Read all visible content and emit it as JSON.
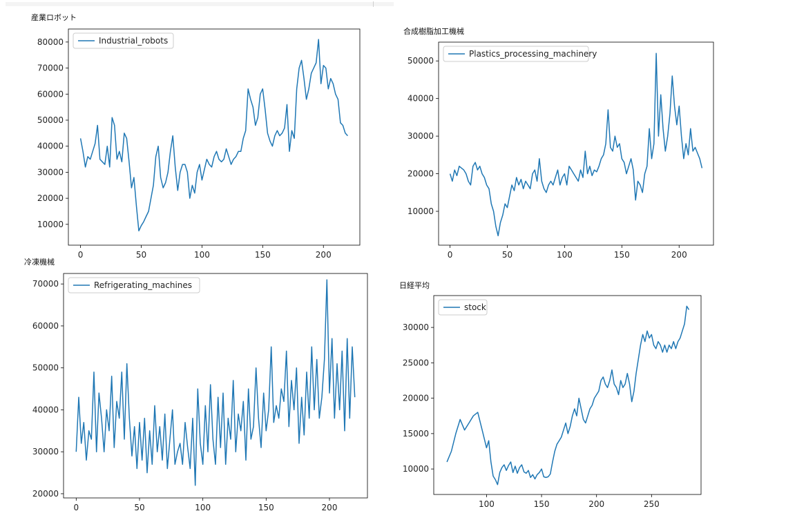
{
  "chart_data": [
    {
      "type": "line",
      "title": "産業ロボット",
      "xlabel": "",
      "ylabel": "",
      "xlim": [
        -10,
        230
      ],
      "ylim": [
        2000,
        85000
      ],
      "xticks": [
        0,
        50,
        100,
        150,
        200
      ],
      "yticks": [
        10000,
        20000,
        30000,
        40000,
        50000,
        60000,
        70000,
        80000
      ],
      "legend": "upper left",
      "series": [
        {
          "name": "Industrial_robots",
          "color": "#1f77b4",
          "x": [
            0,
            2,
            4,
            6,
            8,
            10,
            12,
            14,
            16,
            18,
            20,
            22,
            24,
            26,
            28,
            30,
            32,
            34,
            36,
            38,
            40,
            42,
            44,
            46,
            48,
            50,
            52,
            54,
            56,
            58,
            60,
            62,
            64,
            66,
            68,
            70,
            72,
            74,
            76,
            78,
            80,
            82,
            84,
            86,
            88,
            90,
            92,
            94,
            96,
            98,
            100,
            102,
            104,
            106,
            108,
            110,
            112,
            114,
            116,
            118,
            120,
            122,
            124,
            126,
            128,
            130,
            132,
            134,
            136,
            138,
            140,
            142,
            144,
            146,
            148,
            150,
            152,
            154,
            156,
            158,
            160,
            162,
            164,
            166,
            168,
            170,
            172,
            174,
            176,
            178,
            180,
            182,
            184,
            186,
            188,
            190,
            192,
            194,
            196,
            198,
            200,
            202,
            204,
            206,
            208,
            210,
            212,
            214,
            216,
            218,
            220
          ],
          "values": [
            43000,
            38000,
            32000,
            36000,
            35000,
            38000,
            41000,
            48000,
            35000,
            34000,
            33000,
            40000,
            32000,
            51000,
            48000,
            35000,
            38000,
            34000,
            45000,
            43000,
            34000,
            24000,
            28000,
            17000,
            7500,
            9500,
            11000,
            13000,
            15000,
            20000,
            25000,
            36000,
            40000,
            28000,
            24000,
            26000,
            30000,
            38000,
            44000,
            32000,
            23000,
            30000,
            33000,
            33000,
            30000,
            20000,
            25000,
            22000,
            30000,
            33000,
            27000,
            31000,
            35000,
            33000,
            32000,
            36000,
            38000,
            35000,
            34000,
            35000,
            39000,
            36000,
            33000,
            35000,
            36000,
            38000,
            38000,
            43000,
            46000,
            62000,
            58000,
            55000,
            48000,
            51000,
            60000,
            62000,
            54000,
            45000,
            42000,
            40000,
            44000,
            46000,
            44000,
            45000,
            47000,
            56000,
            38000,
            46000,
            43000,
            62000,
            70000,
            73000,
            66000,
            58000,
            62000,
            68000,
            70000,
            72000,
            81000,
            64000,
            71000,
            70000,
            62000,
            66000,
            64000,
            60000,
            58000,
            49000,
            48000,
            45000,
            44000
          ]
        }
      ]
    },
    {
      "type": "line",
      "title": "合成樹脂加工機械",
      "xlabel": "",
      "ylabel": "",
      "xlim": [
        -10,
        230
      ],
      "ylim": [
        1000,
        55000
      ],
      "xticks": [
        0,
        50,
        100,
        150,
        200
      ],
      "yticks": [
        10000,
        20000,
        30000,
        40000,
        50000
      ],
      "legend": "upper left",
      "series": [
        {
          "name": "Plastics_processing_machinery",
          "color": "#1f77b4",
          "x": [
            0,
            2,
            4,
            6,
            8,
            10,
            12,
            14,
            16,
            18,
            20,
            22,
            24,
            26,
            28,
            30,
            32,
            34,
            36,
            38,
            40,
            42,
            44,
            46,
            48,
            50,
            52,
            54,
            56,
            58,
            60,
            62,
            64,
            66,
            68,
            70,
            72,
            74,
            76,
            78,
            80,
            82,
            84,
            86,
            88,
            90,
            92,
            94,
            96,
            98,
            100,
            102,
            104,
            106,
            108,
            110,
            112,
            114,
            116,
            118,
            120,
            122,
            124,
            126,
            128,
            130,
            132,
            134,
            136,
            138,
            140,
            142,
            144,
            146,
            148,
            150,
            152,
            154,
            156,
            158,
            160,
            162,
            164,
            166,
            168,
            170,
            172,
            174,
            176,
            178,
            180,
            182,
            184,
            186,
            188,
            190,
            192,
            194,
            196,
            198,
            200,
            202,
            204,
            206,
            208,
            210,
            212,
            214,
            216,
            218,
            220
          ],
          "values": [
            20000,
            18000,
            21000,
            19500,
            22000,
            21500,
            21000,
            20000,
            18000,
            17000,
            22000,
            23000,
            21000,
            22000,
            20000,
            19000,
            17000,
            16000,
            12000,
            10000,
            6000,
            3500,
            7000,
            9000,
            12000,
            11000,
            14000,
            17000,
            15500,
            19000,
            17000,
            18500,
            16000,
            18000,
            17000,
            16000,
            20000,
            21000,
            18000,
            24000,
            18000,
            16000,
            15000,
            17000,
            18000,
            17000,
            19000,
            21000,
            17000,
            19000,
            20000,
            17000,
            22000,
            21000,
            20000,
            19000,
            18000,
            21000,
            19000,
            26000,
            20000,
            22000,
            19500,
            21000,
            20500,
            22000,
            24000,
            25000,
            28000,
            37000,
            27000,
            26000,
            30000,
            27000,
            28000,
            24000,
            23000,
            20000,
            22000,
            24000,
            21000,
            13000,
            18000,
            17000,
            15000,
            20000,
            22000,
            32000,
            24000,
            28000,
            52000,
            30000,
            41000,
            32000,
            26000,
            30000,
            36000,
            46000,
            38000,
            33000,
            38000,
            30000,
            24000,
            28000,
            25000,
            32000,
            26000,
            27000,
            25500,
            24000,
            21500
          ]
        }
      ]
    },
    {
      "type": "line",
      "title": "冷凍機械",
      "xlabel": "",
      "ylabel": "",
      "xlim": [
        -10,
        230
      ],
      "ylim": [
        19000,
        72500
      ],
      "xticks": [
        0,
        50,
        100,
        150,
        200
      ],
      "yticks": [
        20000,
        30000,
        40000,
        50000,
        60000,
        70000
      ],
      "legend": "upper left",
      "series": [
        {
          "name": "Refrigerating_machines",
          "color": "#1f77b4",
          "x": [
            0,
            2,
            4,
            6,
            8,
            10,
            12,
            14,
            16,
            18,
            20,
            22,
            24,
            26,
            28,
            30,
            32,
            34,
            36,
            38,
            40,
            42,
            44,
            46,
            48,
            50,
            52,
            54,
            56,
            58,
            60,
            62,
            64,
            66,
            68,
            70,
            72,
            74,
            76,
            78,
            80,
            82,
            84,
            86,
            88,
            90,
            92,
            94,
            96,
            98,
            100,
            102,
            104,
            106,
            108,
            110,
            112,
            114,
            116,
            118,
            120,
            122,
            124,
            126,
            128,
            130,
            132,
            134,
            136,
            138,
            140,
            142,
            144,
            146,
            148,
            150,
            152,
            154,
            156,
            158,
            160,
            162,
            164,
            166,
            168,
            170,
            172,
            174,
            176,
            178,
            180,
            182,
            184,
            186,
            188,
            190,
            192,
            194,
            196,
            198,
            200,
            202,
            204,
            206,
            208,
            210,
            212,
            214,
            216,
            218,
            220
          ],
          "values": [
            30000,
            43000,
            32000,
            37000,
            28000,
            35000,
            33000,
            49000,
            30000,
            44000,
            38000,
            30000,
            40000,
            35000,
            48000,
            31000,
            42000,
            38000,
            49000,
            33000,
            51000,
            38000,
            29000,
            36000,
            26000,
            37000,
            28000,
            38000,
            25000,
            35000,
            27000,
            41000,
            30000,
            36000,
            28000,
            39000,
            26000,
            33000,
            40000,
            27000,
            30000,
            32000,
            27000,
            37000,
            31000,
            26000,
            38000,
            22000,
            45000,
            32000,
            27000,
            41000,
            30000,
            46000,
            33000,
            27000,
            43000,
            31000,
            44000,
            27000,
            38000,
            33000,
            47000,
            30000,
            39000,
            35000,
            42000,
            28000,
            45000,
            33000,
            36000,
            50000,
            38000,
            31000,
            44000,
            35000,
            40000,
            55000,
            37000,
            41000,
            38000,
            45000,
            42000,
            54000,
            36000,
            47000,
            40000,
            50000,
            32000,
            43000,
            34000,
            49000,
            38000,
            55000,
            40000,
            52000,
            38000,
            43000,
            52000,
            71000,
            44000,
            57000,
            38000,
            51000,
            40000,
            54000,
            35000,
            57000,
            38000,
            55000,
            43000
          ]
        }
      ]
    },
    {
      "type": "line",
      "title": "日経平均",
      "xlabel": "",
      "ylabel": "",
      "xlim": [
        52,
        295
      ],
      "ylim": [
        6400,
        34500
      ],
      "xticks": [
        100,
        150,
        200,
        250
      ],
      "yticks": [
        10000,
        15000,
        20000,
        25000,
        30000
      ],
      "legend": "upper left",
      "series": [
        {
          "name": "stock",
          "color": "#1f77b4",
          "x": [
            64,
            68,
            72,
            76,
            80,
            84,
            88,
            92,
            96,
            100,
            102,
            104,
            106,
            108,
            110,
            112,
            114,
            116,
            118,
            120,
            122,
            124,
            126,
            128,
            130,
            132,
            134,
            136,
            138,
            140,
            142,
            144,
            146,
            148,
            150,
            152,
            154,
            156,
            158,
            160,
            162,
            164,
            166,
            168,
            170,
            172,
            174,
            176,
            178,
            180,
            182,
            184,
            186,
            188,
            190,
            192,
            194,
            196,
            198,
            200,
            202,
            204,
            206,
            208,
            210,
            212,
            214,
            216,
            218,
            220,
            222,
            224,
            226,
            228,
            230,
            232,
            234,
            236,
            238,
            240,
            242,
            244,
            246,
            248,
            250,
            252,
            254,
            256,
            258,
            260,
            262,
            264,
            266,
            268,
            270,
            272,
            274,
            276,
            278,
            280,
            282,
            284
          ],
          "values": [
            11000,
            12500,
            15000,
            17000,
            15500,
            16500,
            17500,
            18000,
            15500,
            13000,
            14000,
            11000,
            9000,
            8500,
            7800,
            9500,
            10200,
            10600,
            9800,
            10500,
            11000,
            9500,
            10400,
            9400,
            10200,
            10600,
            9600,
            9400,
            9800,
            8800,
            9200,
            8600,
            9200,
            9500,
            10000,
            8900,
            8800,
            8900,
            9300,
            11000,
            12500,
            13500,
            14000,
            14500,
            15500,
            16500,
            15000,
            16000,
            17500,
            18500,
            17500,
            20000,
            18500,
            17000,
            16500,
            17500,
            18500,
            19000,
            20000,
            20500,
            21000,
            22500,
            23000,
            22000,
            21500,
            22500,
            24000,
            22000,
            21500,
            20500,
            22500,
            21500,
            22000,
            23500,
            22000,
            19500,
            21000,
            23500,
            25500,
            27500,
            29000,
            28000,
            29500,
            28500,
            29000,
            27500,
            27000,
            28000,
            27500,
            26500,
            27500,
            26500,
            27500,
            27000,
            28000,
            27000,
            28000,
            28500,
            29500,
            30500,
            33000,
            32500
          ]
        }
      ]
    }
  ]
}
